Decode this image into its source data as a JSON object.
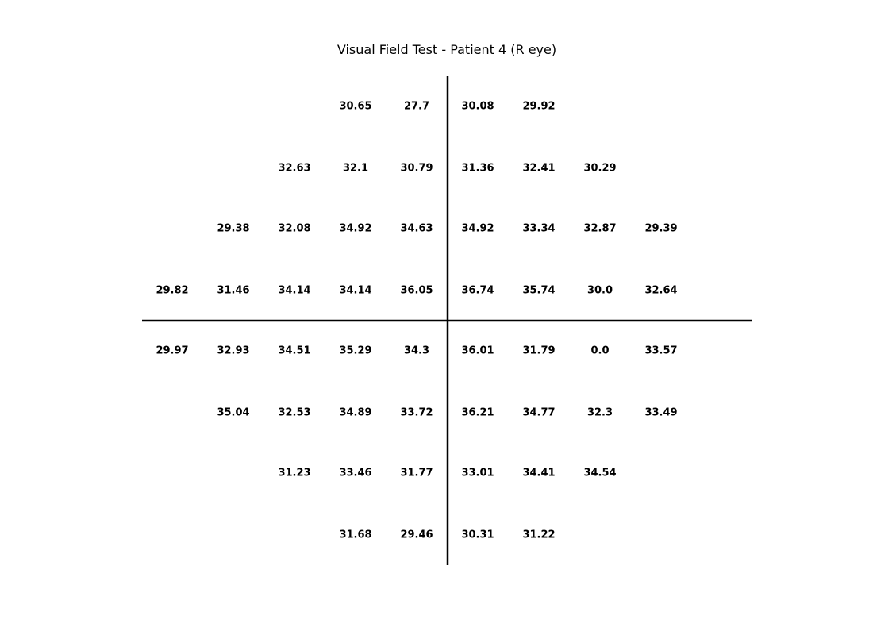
{
  "chart_data": {
    "type": "table",
    "title": "Visual Field Test - Patient 4 (R eye)",
    "eye": "R",
    "grid_columns": 9,
    "grid_rows": 8,
    "rows": [
      [
        null,
        null,
        null,
        "30.65",
        "27.7",
        "30.08",
        "29.92",
        null,
        null
      ],
      [
        null,
        null,
        "32.63",
        "32.1",
        "30.79",
        "31.36",
        "32.41",
        "30.29",
        null
      ],
      [
        null,
        "29.38",
        "32.08",
        "34.92",
        "34.63",
        "34.92",
        "33.34",
        "32.87",
        "29.39"
      ],
      [
        "29.82",
        "31.46",
        "34.14",
        "34.14",
        "36.05",
        "36.74",
        "35.74",
        "30.0",
        "32.64"
      ],
      [
        "29.97",
        "32.93",
        "34.51",
        "35.29",
        "34.3",
        "36.01",
        "31.79",
        "0.0",
        "33.57"
      ],
      [
        null,
        "35.04",
        "32.53",
        "34.89",
        "33.72",
        "36.21",
        "34.77",
        "32.3",
        "33.49"
      ],
      [
        null,
        null,
        "31.23",
        "33.46",
        "31.77",
        "33.01",
        "34.41",
        "34.54",
        null
      ],
      [
        null,
        null,
        null,
        "31.68",
        "29.46",
        "30.31",
        "31.22",
        null,
        null
      ]
    ],
    "vertical_meridian": true,
    "horizontal_meridian": true,
    "grid": false,
    "colors": {
      "text": "#000000",
      "axes": "#000000",
      "background": "#ffffff"
    }
  }
}
